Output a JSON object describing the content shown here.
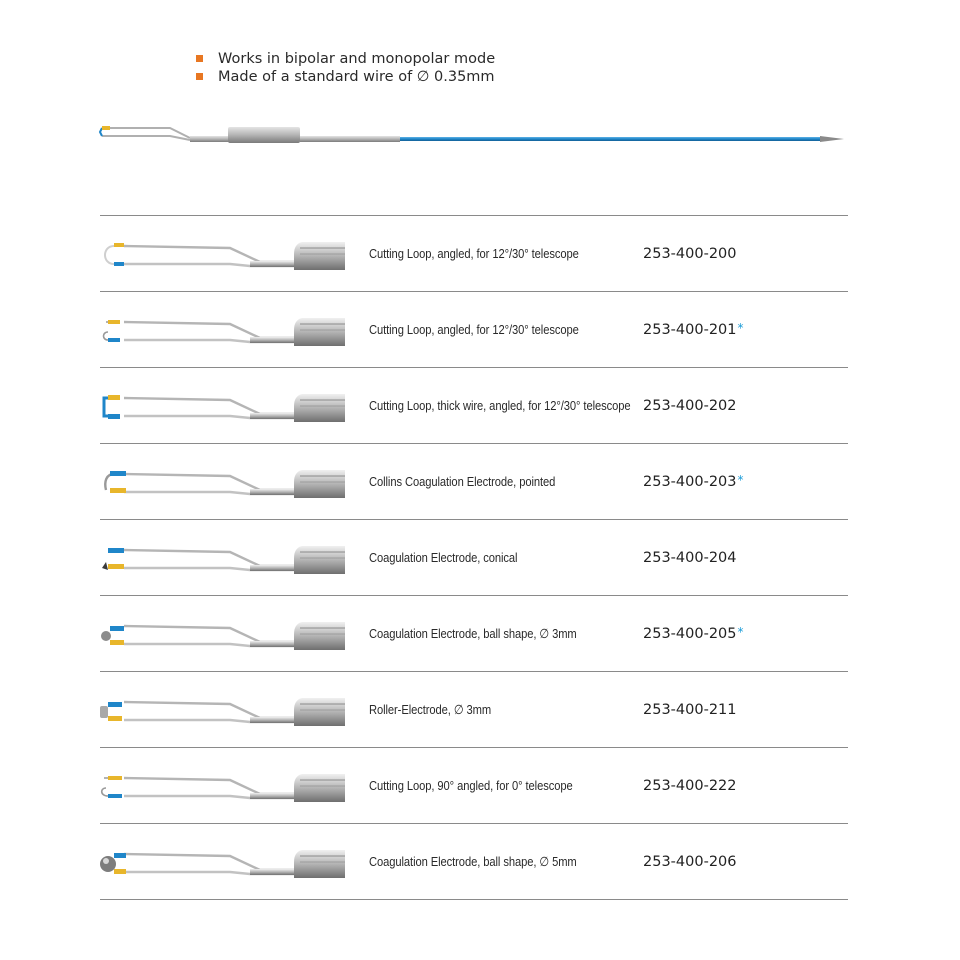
{
  "features": [
    "Works in bipolar and monopolar mode",
    "Made of a standard wire of ∅ 0.35mm"
  ],
  "colors": {
    "bullet": "#e87722",
    "blue": "#1f86c9",
    "yellow": "#e8b62b",
    "star": "#1a9bd7"
  },
  "products": [
    {
      "description": "Cutting Loop, angled, for 12°/30° telescope",
      "code": "253-400-200",
      "star": "",
      "tip": "loop-open"
    },
    {
      "description": "Cutting Loop, angled, for 12°/30° telescope",
      "code": "253-400-201",
      "star": "*",
      "tip": "loop-hook"
    },
    {
      "description": "Cutting Loop, thick wire, angled, for 12°/30° telescope",
      "code": "253-400-202",
      "star": "",
      "tip": "loop-thick"
    },
    {
      "description": "Collins Coagulation Electrode, pointed",
      "code": "253-400-203",
      "star": "*",
      "tip": "pointed"
    },
    {
      "description": "Coagulation Electrode, conical",
      "code": "253-400-204",
      "star": "",
      "tip": "conical"
    },
    {
      "description": "Coagulation Electrode, ball shape, ∅ 3mm",
      "code": "253-400-205",
      "star": "*",
      "tip": "ball-small"
    },
    {
      "description": "Roller-Electrode, ∅ 3mm",
      "code": "253-400-211",
      "star": "",
      "tip": "roller"
    },
    {
      "description": "Cutting Loop, 90° angled, for 0° telescope",
      "code": "253-400-222",
      "star": "",
      "tip": "loop-90"
    },
    {
      "description": "Coagulation Electrode, ball shape, ∅ 5mm",
      "code": "253-400-206",
      "star": "",
      "tip": "ball-large"
    }
  ]
}
